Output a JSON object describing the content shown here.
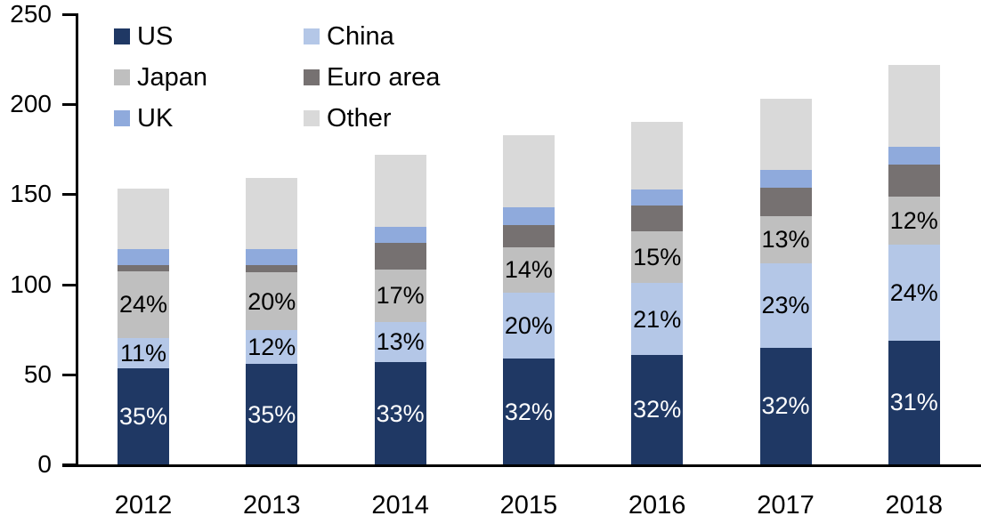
{
  "chart_data": {
    "type": "stacked-bar",
    "title": "",
    "categories": [
      "2012",
      "2013",
      "2014",
      "2015",
      "2016",
      "2017",
      "2018"
    ],
    "totals": [
      153,
      159,
      172,
      183,
      190,
      203,
      222
    ],
    "series": [
      {
        "name": "US",
        "color": "#1f3864",
        "label_color": "#ffffff",
        "percents": [
          35,
          35,
          33,
          32,
          32,
          32,
          31
        ],
        "labels": [
          "35%",
          "35%",
          "33%",
          "32%",
          "32%",
          "32%",
          "31%"
        ]
      },
      {
        "name": "China",
        "color": "#b4c7e7",
        "label_color": "#000000",
        "percents": [
          11,
          12,
          13,
          20,
          21,
          23,
          24
        ],
        "labels": [
          "11%",
          "12%",
          "13%",
          "20%",
          "21%",
          "23%",
          "24%"
        ]
      },
      {
        "name": "Japan",
        "color": "#bfbfbf",
        "label_color": "#000000",
        "percents": [
          24,
          20,
          17,
          14,
          15,
          13,
          12
        ],
        "labels": [
          "24%",
          "20%",
          "17%",
          "14%",
          "15%",
          "13%",
          "12%"
        ]
      },
      {
        "name": "Euro area",
        "color": "#767171",
        "percents": [
          2.4,
          2.6,
          8.6,
          6.6,
          7.6,
          7.6,
          7.9
        ]
      },
      {
        "name": "UK",
        "color": "#8faadc",
        "percents": [
          5.8,
          5.6,
          5.2,
          5.5,
          4.7,
          4.9,
          4.5
        ]
      },
      {
        "name": "Other",
        "color": "#d9d9d9",
        "percents": [
          21.8,
          24.8,
          23.2,
          21.9,
          19.7,
          19.5,
          20.6
        ]
      }
    ],
    "stack_order_bottom_to_top": [
      "US",
      "China",
      "Japan",
      "Euro area",
      "UK",
      "Other"
    ],
    "yticks": [
      0,
      50,
      100,
      150,
      200,
      250
    ],
    "ytick_labels": [
      "0",
      "50",
      "100",
      "150",
      "200",
      "250"
    ],
    "ylim": [
      0,
      250
    ],
    "grid": false,
    "legend_position": "top-left",
    "axis_color": "#000000"
  }
}
